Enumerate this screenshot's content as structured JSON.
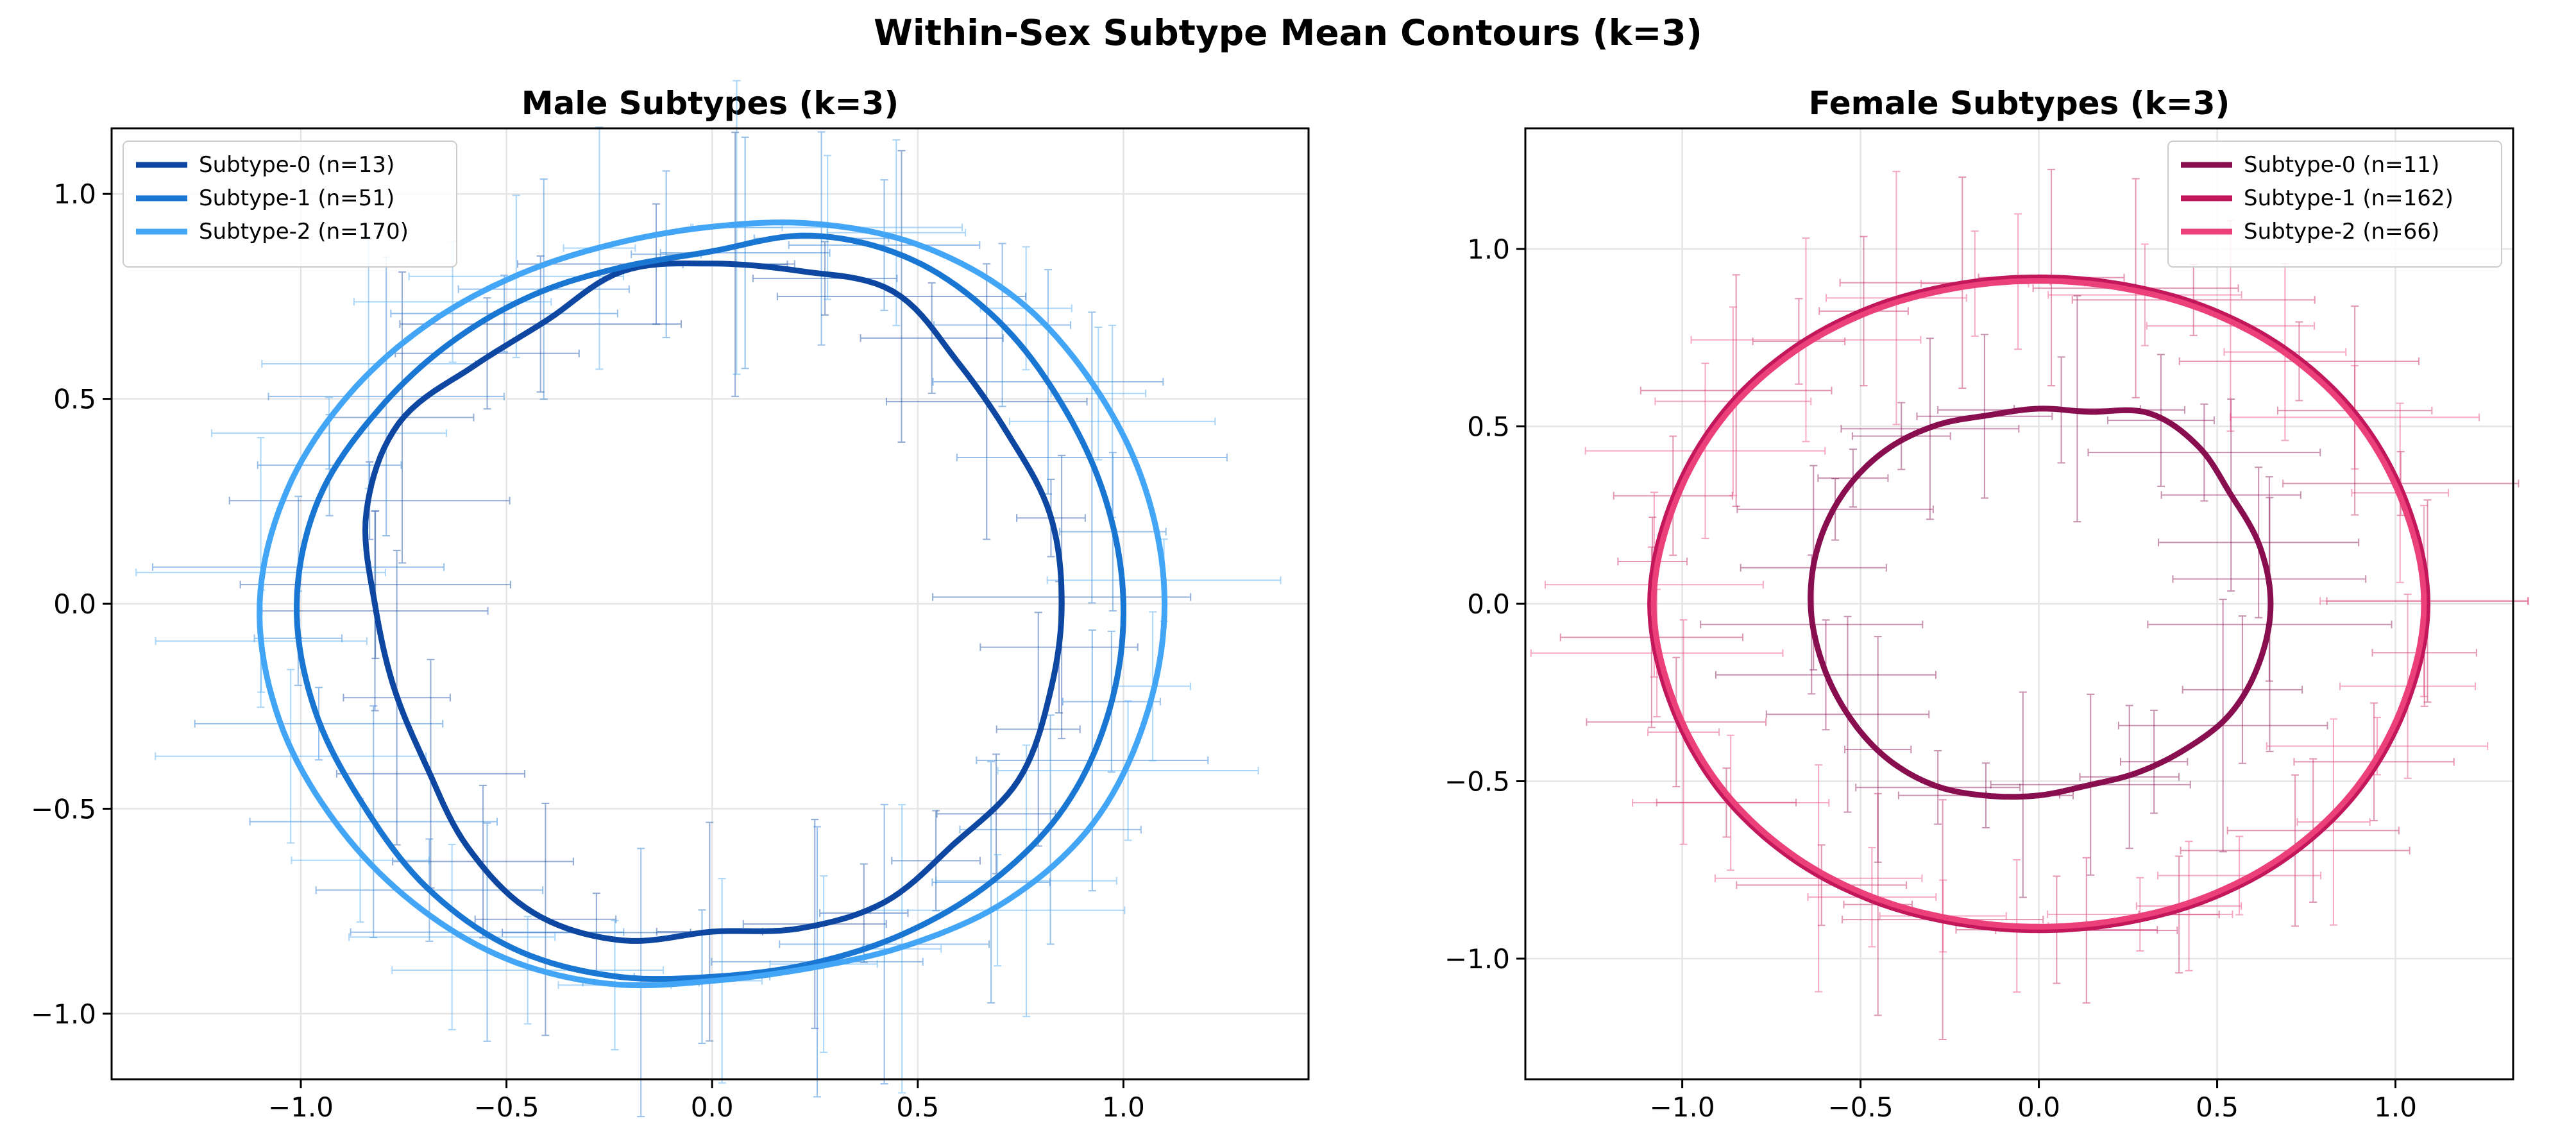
{
  "title": "Within-Sex Subtype Mean Contours (k=3)",
  "chart_data": [
    {
      "type": "line",
      "title": "Male Subtypes (k=3)",
      "xlim": [
        -1.46,
        1.45
      ],
      "ylim": [
        -1.16,
        1.16
      ],
      "xticks": [
        -1.0,
        -0.5,
        0.0,
        0.5,
        1.0
      ],
      "yticks": [
        -1.0,
        -0.5,
        0.0,
        0.5,
        1.0
      ],
      "grid": true,
      "legend_position": "upper-left",
      "series": [
        {
          "name": "Subtype-0 (n=13)",
          "color": "#0d47a1",
          "angles_deg": [
            0,
            15,
            30,
            45,
            60,
            75,
            90,
            105,
            120,
            135,
            150,
            165,
            180,
            195,
            210,
            225,
            240,
            255,
            270,
            285,
            300,
            315,
            330,
            345
          ],
          "radii": [
            0.85,
            0.85,
            0.83,
            0.84,
            0.88,
            0.84,
            0.83,
            0.84,
            0.8,
            0.82,
            0.88,
            0.87,
            0.82,
            0.8,
            0.8,
            0.84,
            0.87,
            0.85,
            0.8,
            0.82,
            0.84,
            0.83,
            0.86,
            0.85
          ]
        },
        {
          "name": "Subtype-1 (n=51)",
          "color": "#1976d2",
          "angles_deg": [
            0,
            15,
            30,
            45,
            60,
            75,
            90,
            105,
            120,
            135,
            150,
            165,
            180,
            195,
            210,
            225,
            240,
            255,
            270,
            285,
            300,
            315,
            330,
            345
          ],
          "radii": [
            1.0,
            0.99,
            0.98,
            0.98,
            0.97,
            0.93,
            0.86,
            0.85,
            0.87,
            0.9,
            0.94,
            0.99,
            1.01,
            1.0,
            0.98,
            0.98,
            0.97,
            0.94,
            0.91,
            0.91,
            0.93,
            0.96,
            0.99,
            1.0
          ]
        },
        {
          "name": "Subtype-2 (n=170)",
          "color": "#42a5f5",
          "angles_deg": [
            0,
            15,
            30,
            45,
            60,
            75,
            90,
            105,
            120,
            135,
            150,
            165,
            180,
            195,
            210,
            225,
            240,
            255,
            270,
            285,
            300,
            315,
            330,
            345
          ],
          "radii": [
            1.1,
            1.09,
            1.07,
            1.05,
            1.01,
            0.96,
            0.92,
            0.91,
            0.93,
            0.97,
            1.02,
            1.07,
            1.1,
            1.09,
            1.06,
            1.03,
            1.0,
            0.96,
            0.92,
            0.92,
            0.96,
            1.02,
            1.07,
            1.09
          ]
        }
      ]
    },
    {
      "type": "line",
      "title": "Female Subtypes (k=3)",
      "xlim": [
        -1.44,
        1.33
      ],
      "ylim": [
        -1.34,
        1.34
      ],
      "xticks": [
        -1.0,
        -0.5,
        0.0,
        0.5,
        1.0
      ],
      "yticks": [
        -1.0,
        -0.5,
        0.0,
        0.5,
        1.0
      ],
      "grid": true,
      "legend_position": "upper-right",
      "series": [
        {
          "name": "Subtype-0 (n=11)",
          "color": "#880e4f",
          "angles_deg": [
            0,
            15,
            30,
            45,
            60,
            75,
            90,
            105,
            120,
            135,
            150,
            165,
            180,
            195,
            210,
            225,
            240,
            255,
            270,
            285,
            300,
            315,
            330,
            345
          ],
          "radii": [
            0.65,
            0.64,
            0.62,
            0.63,
            0.62,
            0.56,
            0.55,
            0.55,
            0.58,
            0.61,
            0.63,
            0.64,
            0.64,
            0.63,
            0.62,
            0.61,
            0.59,
            0.56,
            0.54,
            0.53,
            0.55,
            0.58,
            0.62,
            0.64
          ]
        },
        {
          "name": "Subtype-1 (n=162)",
          "color": "#c2185b",
          "angles_deg": [
            0,
            15,
            30,
            45,
            60,
            75,
            90,
            105,
            120,
            135,
            150,
            165,
            180,
            195,
            210,
            225,
            240,
            255,
            270,
            285,
            300,
            315,
            330,
            345
          ],
          "radii": [
            1.09,
            1.07,
            1.04,
            1.0,
            0.96,
            0.93,
            0.92,
            0.93,
            0.96,
            1.0,
            1.04,
            1.07,
            1.09,
            1.07,
            1.04,
            1.0,
            0.96,
            0.93,
            0.92,
            0.93,
            0.96,
            1.0,
            1.04,
            1.07
          ]
        },
        {
          "name": "Subtype-2 (n=66)",
          "color": "#ec407a",
          "angles_deg": [
            0,
            15,
            30,
            45,
            60,
            75,
            90,
            105,
            120,
            135,
            150,
            165,
            180,
            195,
            210,
            225,
            240,
            255,
            270,
            285,
            300,
            315,
            330,
            345
          ],
          "radii": [
            1.08,
            1.06,
            1.03,
            0.99,
            0.95,
            0.92,
            0.91,
            0.92,
            0.95,
            0.99,
            1.03,
            1.06,
            1.08,
            1.06,
            1.03,
            0.99,
            0.95,
            0.92,
            0.91,
            0.92,
            0.95,
            0.99,
            1.03,
            1.06
          ]
        }
      ]
    }
  ]
}
